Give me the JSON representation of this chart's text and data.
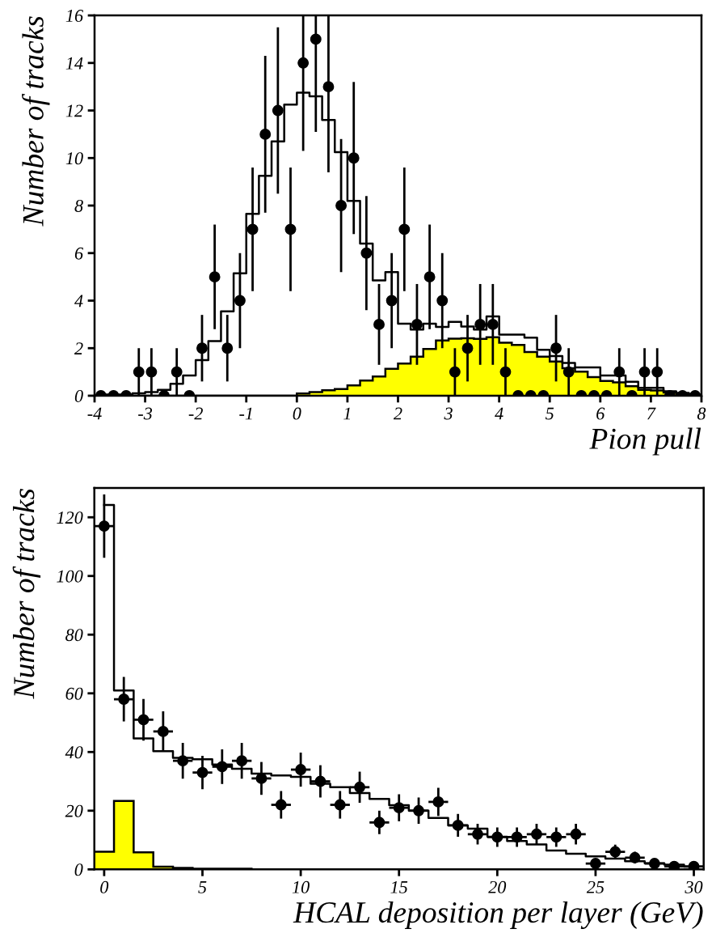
{
  "chart_data": [
    {
      "type": "histogram",
      "xlabel": "Pion pull",
      "ylabel": "Number of tracks",
      "bins": [
        -4,
        -3.75,
        -3.5,
        -3.25,
        -3,
        -2.75,
        -2.5,
        -2.25,
        -2,
        -1.75,
        -1.5,
        -1.25,
        -1,
        -0.75,
        -0.5,
        -0.25,
        0,
        0.25,
        0.5,
        0.75,
        1,
        1.25,
        1.5,
        1.75,
        2,
        2.25,
        2.5,
        2.75,
        3,
        3.25,
        3.5,
        3.75,
        4,
        4.25,
        4.5,
        4.75,
        5,
        5.25,
        5.5,
        5.75,
        6,
        6.25,
        6.5,
        6.75,
        7,
        7.25,
        7.5,
        7.75,
        8
      ],
      "series": [
        {
          "type": "histogram",
          "color": "#ffff00",
          "values": [
            0,
            0,
            0,
            0,
            0,
            0,
            0,
            0,
            0,
            0,
            0,
            0,
            0,
            0,
            0,
            0,
            0.09,
            0.15,
            0.23,
            0.28,
            0.43,
            0.64,
            0.81,
            1.13,
            1.35,
            1.64,
            1.97,
            2.32,
            2.4,
            2.42,
            2.39,
            2.46,
            2.23,
            2.14,
            1.84,
            1.64,
            1.44,
            1.16,
            1.01,
            0.78,
            0.62,
            0.56,
            0.4,
            0.25,
            0.22,
            0.14,
            0.08,
            0.05
          ]
        },
        {
          "type": "step",
          "color": "#000000",
          "x": [
            -3.875,
            -3.625,
            -3.375,
            -3.125,
            -2.875,
            -2.625,
            -2.375,
            -2.125,
            -1.875,
            -1.625,
            -1.375,
            -1.125,
            -0.875,
            -0.625,
            -0.375,
            -0.125,
            0.125,
            0.375,
            0.625,
            0.875,
            1.125,
            1.375,
            1.625,
            1.875,
            2.125,
            2.375,
            2.625,
            2.875,
            3.125,
            3.375,
            3.625,
            3.875,
            4.125,
            4.375,
            4.625,
            4.875,
            5.125,
            5.375,
            5.625,
            5.875,
            6.125,
            6.375,
            6.625,
            6.875,
            7.125,
            7.375,
            7.625,
            7.875
          ],
          "values": [
            0.05,
            0.05,
            0.05,
            0.1,
            0.15,
            0.25,
            0.5,
            0.85,
            1.5,
            2.3,
            3.55,
            5.15,
            7.65,
            9.25,
            10.7,
            12.25,
            12.75,
            12.6,
            11.6,
            10.25,
            8.2,
            6.4,
            4.85,
            5.2,
            3.03,
            2.78,
            3.03,
            2.89,
            3.11,
            2.91,
            2.78,
            3.34,
            2.57,
            2.57,
            2.44,
            1.93,
            1.67,
            1.38,
            1.19,
            1.19,
            0.85,
            0.85,
            0.59,
            0.33,
            0.33,
            0.19,
            0.12,
            0.07
          ]
        },
        {
          "type": "scatter",
          "color": "#000000",
          "marker": "circle",
          "x": [
            -3.875,
            -3.625,
            -3.375,
            -3.125,
            -2.875,
            -2.625,
            -2.375,
            -2.125,
            -1.875,
            -1.625,
            -1.375,
            -1.125,
            -0.875,
            -0.625,
            -0.375,
            -0.125,
            0.125,
            0.375,
            0.625,
            0.875,
            1.125,
            1.375,
            1.625,
            1.875,
            2.125,
            2.375,
            2.625,
            2.875,
            3.125,
            3.375,
            3.625,
            3.875,
            4.125,
            4.375,
            4.625,
            4.875,
            5.125,
            5.375,
            5.625,
            5.875,
            6.125,
            6.375,
            6.625,
            6.875,
            7.125,
            7.375,
            7.625,
            7.875
          ],
          "values": [
            0,
            0,
            0,
            1,
            1,
            0,
            1,
            0,
            2,
            5,
            2,
            4,
            7,
            11,
            12,
            7,
            14,
            15,
            13,
            8,
            10,
            6,
            3,
            4,
            7,
            3,
            5,
            4,
            1,
            2,
            3,
            3,
            1,
            0,
            0,
            0,
            2,
            1,
            0,
            0,
            0,
            1,
            0,
            1,
            1,
            0,
            0,
            0
          ],
          "errors": [
            null,
            null,
            null,
            1,
            1,
            null,
            1,
            null,
            1.4,
            2.2,
            1.4,
            2,
            2.6,
            3.3,
            3.5,
            2.6,
            [
              10.3,
              16
            ],
            [
              11.1,
              16
            ],
            [
              9.4,
              16
            ],
            2.8,
            3.2,
            2.4,
            1.7,
            2,
            2.6,
            1.7,
            2.2,
            2,
            1,
            1.4,
            1.7,
            1.7,
            1,
            null,
            null,
            null,
            1.4,
            1,
            null,
            null,
            null,
            1,
            null,
            1,
            1,
            null,
            null,
            null
          ]
        }
      ],
      "xlim": [
        -4,
        8
      ],
      "ylim": [
        0,
        16
      ],
      "xticks": [
        -4,
        -3,
        -2,
        -1,
        0,
        1,
        2,
        3,
        4,
        5,
        6,
        7,
        8
      ],
      "yticks": [
        0,
        2,
        4,
        6,
        8,
        10,
        12,
        14,
        16
      ],
      "grid": false,
      "legend": false
    },
    {
      "type": "histogram",
      "xlabel": "HCAL deposition per layer (GeV)",
      "ylabel": "Number of tracks",
      "bins": [
        -0.5,
        0.5,
        1.5,
        2.5,
        3.5,
        4.5,
        5.5,
        6.5,
        7.5,
        8.5,
        9.5,
        10.5,
        11.5,
        12.5,
        13.5,
        14.5,
        15.5,
        16.5,
        17.5,
        18.5,
        19.5,
        20.5,
        21.5,
        22.5,
        23.5,
        24.5,
        25.5,
        26.5,
        27.5,
        28.5,
        29.5,
        30.5
      ],
      "series": [
        {
          "type": "histogram",
          "color": "#ffff00",
          "values": [
            6,
            23.3,
            5.8,
            0.9,
            0.5,
            0.2,
            0.2,
            0.2,
            0,
            0,
            0,
            0,
            0,
            0,
            0,
            0,
            0,
            0,
            0,
            0,
            0,
            0,
            0,
            0,
            0,
            0,
            0,
            0,
            0,
            0,
            0
          ]
        },
        {
          "type": "step",
          "color": "#000000",
          "x": [
            0,
            1,
            2,
            3,
            4,
            5,
            6,
            7,
            8,
            9,
            10,
            11,
            12,
            13,
            14,
            15,
            16,
            17,
            18,
            19,
            20,
            21,
            22,
            23,
            24,
            25,
            26,
            27,
            28,
            29,
            30
          ],
          "values": [
            124.2,
            61,
            44.6,
            40.3,
            38,
            37.5,
            35.7,
            34.3,
            32.6,
            32,
            31.5,
            29.2,
            28,
            26,
            24,
            21.9,
            20,
            17.5,
            15,
            13.9,
            11.1,
            9.7,
            8.5,
            6.4,
            5.3,
            4.4,
            3.7,
            2.8,
            2.1,
            1.6,
            0.9
          ]
        },
        {
          "type": "scatter",
          "color": "#000000",
          "marker": "circle",
          "x": [
            0,
            1,
            2,
            3,
            4,
            5,
            6,
            7,
            8,
            9,
            10,
            11,
            12,
            13,
            14,
            15,
            16,
            17,
            18,
            19,
            20,
            21,
            22,
            23,
            24,
            25,
            26,
            27,
            28,
            29,
            30
          ],
          "values": [
            117,
            58,
            51,
            47,
            37,
            33,
            35,
            37,
            31,
            22,
            34,
            30,
            22,
            28,
            16,
            21,
            20,
            23,
            15,
            12,
            11,
            11,
            12,
            11,
            12,
            2,
            6,
            4,
            2,
            1,
            1
          ],
          "errors": [
            10.8,
            7.6,
            7.1,
            6.9,
            6.1,
            5.7,
            5.9,
            6.1,
            5.6,
            4.7,
            5.8,
            5.5,
            4.7,
            5.3,
            4,
            4.6,
            4.5,
            4.8,
            3.9,
            3.5,
            3.3,
            3.3,
            3.5,
            3.3,
            3.5,
            1.4,
            2.4,
            2,
            1.4,
            1,
            1
          ],
          "xerrors": [
            0.5,
            0.5,
            0.5,
            0.5,
            0.5,
            0.5,
            0.5,
            0.5,
            0.5,
            0.5,
            0.5,
            0.5,
            0.5,
            0.5,
            0.5,
            0.5,
            0.5,
            0.5,
            0.5,
            0.5,
            0.5,
            0.5,
            0.5,
            0.5,
            0.5,
            0.5,
            0.5,
            0.5,
            0.5,
            0.5,
            0.5
          ]
        }
      ],
      "xlim": [
        -0.5,
        30.5
      ],
      "ylim": [
        0,
        130
      ],
      "xticks": [
        0,
        5,
        10,
        15,
        20,
        25,
        30
      ],
      "yticks": [
        0,
        20,
        40,
        60,
        80,
        100,
        120
      ],
      "grid": false,
      "legend": false
    }
  ]
}
